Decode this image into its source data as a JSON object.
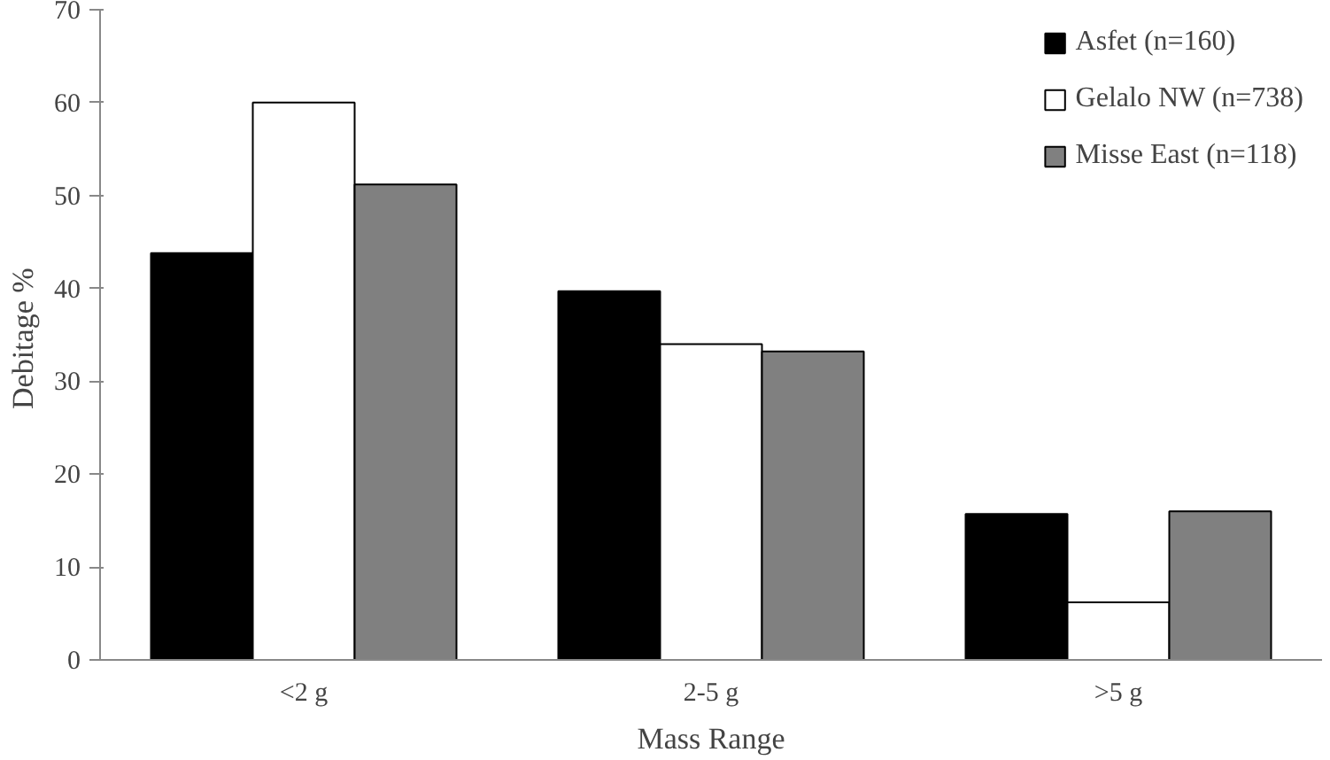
{
  "chart_data": {
    "type": "bar",
    "xlabel": "Mass Range",
    "ylabel": "Debitage  %",
    "categories": [
      "<2 g",
      "2-5 g",
      ">5 g"
    ],
    "series": [
      {
        "name": "Asfet (n=160)",
        "color": "#000000",
        "values": [
          43.8,
          39.7,
          15.7
        ]
      },
      {
        "name": "Gelalo NW (n=738)",
        "color": "#ffffff",
        "values": [
          60,
          34,
          6.2
        ]
      },
      {
        "name": "Misse East (n=118)",
        "color": "#808080",
        "values": [
          51.2,
          33.2,
          16
        ]
      }
    ],
    "ylim": [
      0,
      70
    ],
    "yticks": [
      0,
      10,
      20,
      30,
      40,
      50,
      60,
      70
    ],
    "grid": false,
    "legend": "top right"
  }
}
